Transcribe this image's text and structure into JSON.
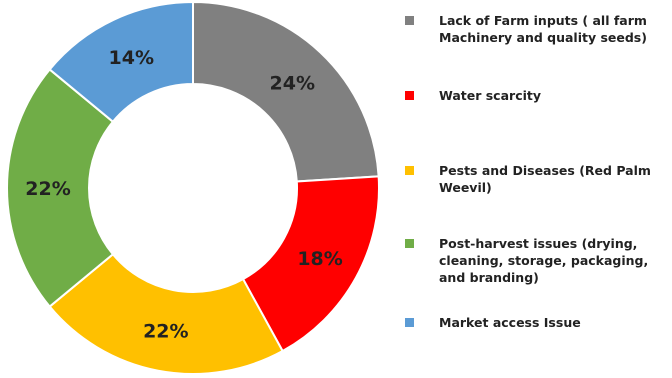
{
  "chart_data": {
    "type": "pie",
    "donut": true,
    "slices": [
      {
        "label": "Lack of Farm inputs ( all farm Machinery and quality seeds)",
        "value": 24,
        "display": "24%",
        "color": "#808080"
      },
      {
        "label": "Water scarcity",
        "value": 18,
        "display": "18%",
        "color": "#ff0000"
      },
      {
        "label": "Pests and Diseases (Red Palm Weevil)",
        "value": 22,
        "display": "22%",
        "color": "#ffc000"
      },
      {
        "label": "Post-harvest issues (drying, cleaning, storage, packaging, and branding)",
        "value": 22,
        "display": "22%",
        "color": "#70ad47"
      },
      {
        "label": "Market access Issue",
        "value": 14,
        "display": "14%",
        "color": "#5b9bd5"
      }
    ],
    "legend_position": "right"
  }
}
